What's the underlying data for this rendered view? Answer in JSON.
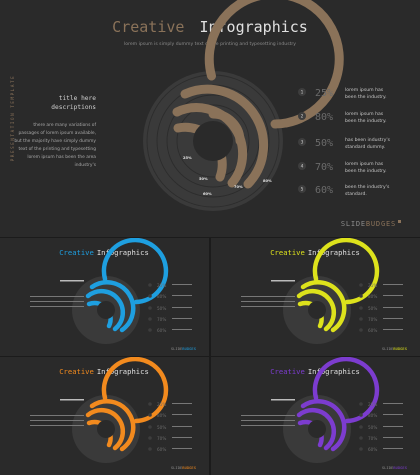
{
  "colors": {
    "background": "#1b1b1b",
    "panel": "#2a2a2a",
    "main_accent": "#8a7259",
    "ring_track": "#3a3a3a",
    "blue": "#1e9fe0",
    "yellow": "#dde21c",
    "orange": "#f28a1e",
    "purple": "#7c3ccf",
    "muted_percent": "#6b6b6b"
  },
  "main": {
    "title_word1": "Creative",
    "title_word2": "Infographics",
    "subtitle": "lorem ipsum is simply dummy text of the printing and typesetting industry",
    "side_label": "PRESENTATION TEMPLATE",
    "left_heading_line1": "title here",
    "left_heading_line2": "descriptions",
    "left_body": [
      "there are many variations of",
      "passages of lorem ipsum available,",
      "but the majority have simply dummy",
      "text of the printing and typesetting",
      "lorem ipsum has been the area",
      "industry's"
    ],
    "items": [
      {
        "num": "1",
        "percent": "25%",
        "line1": "lorem ipsum has",
        "line2": "been the industry."
      },
      {
        "num": "2",
        "percent": "80%",
        "line1": "lorem ipsum has",
        "line2": "been the industry."
      },
      {
        "num": "3",
        "percent": "50%",
        "line1": "has been industry's",
        "line2": "standard dummy."
      },
      {
        "num": "4",
        "percent": "70%",
        "line1": "lorem ipsum has",
        "line2": "been the industry."
      },
      {
        "num": "5",
        "percent": "60%",
        "line1": "been the industry's",
        "line2": "standard."
      }
    ],
    "ring_labels": [
      "25%",
      "50%",
      "60%",
      "70%",
      "80%"
    ],
    "brand_light": "SLIDE",
    "brand_bold": "BUDGES"
  },
  "thumbs": [
    {
      "title_word1": "Creative",
      "title_word2": "Infographics",
      "accent_key": "blue"
    },
    {
      "title_word1": "Creative",
      "title_word2": "Infographics",
      "accent_key": "yellow"
    },
    {
      "title_word1": "Creative",
      "title_word2": "Infographics",
      "accent_key": "orange"
    },
    {
      "title_word1": "Creative",
      "title_word2": "Infographics",
      "accent_key": "purple"
    }
  ]
}
